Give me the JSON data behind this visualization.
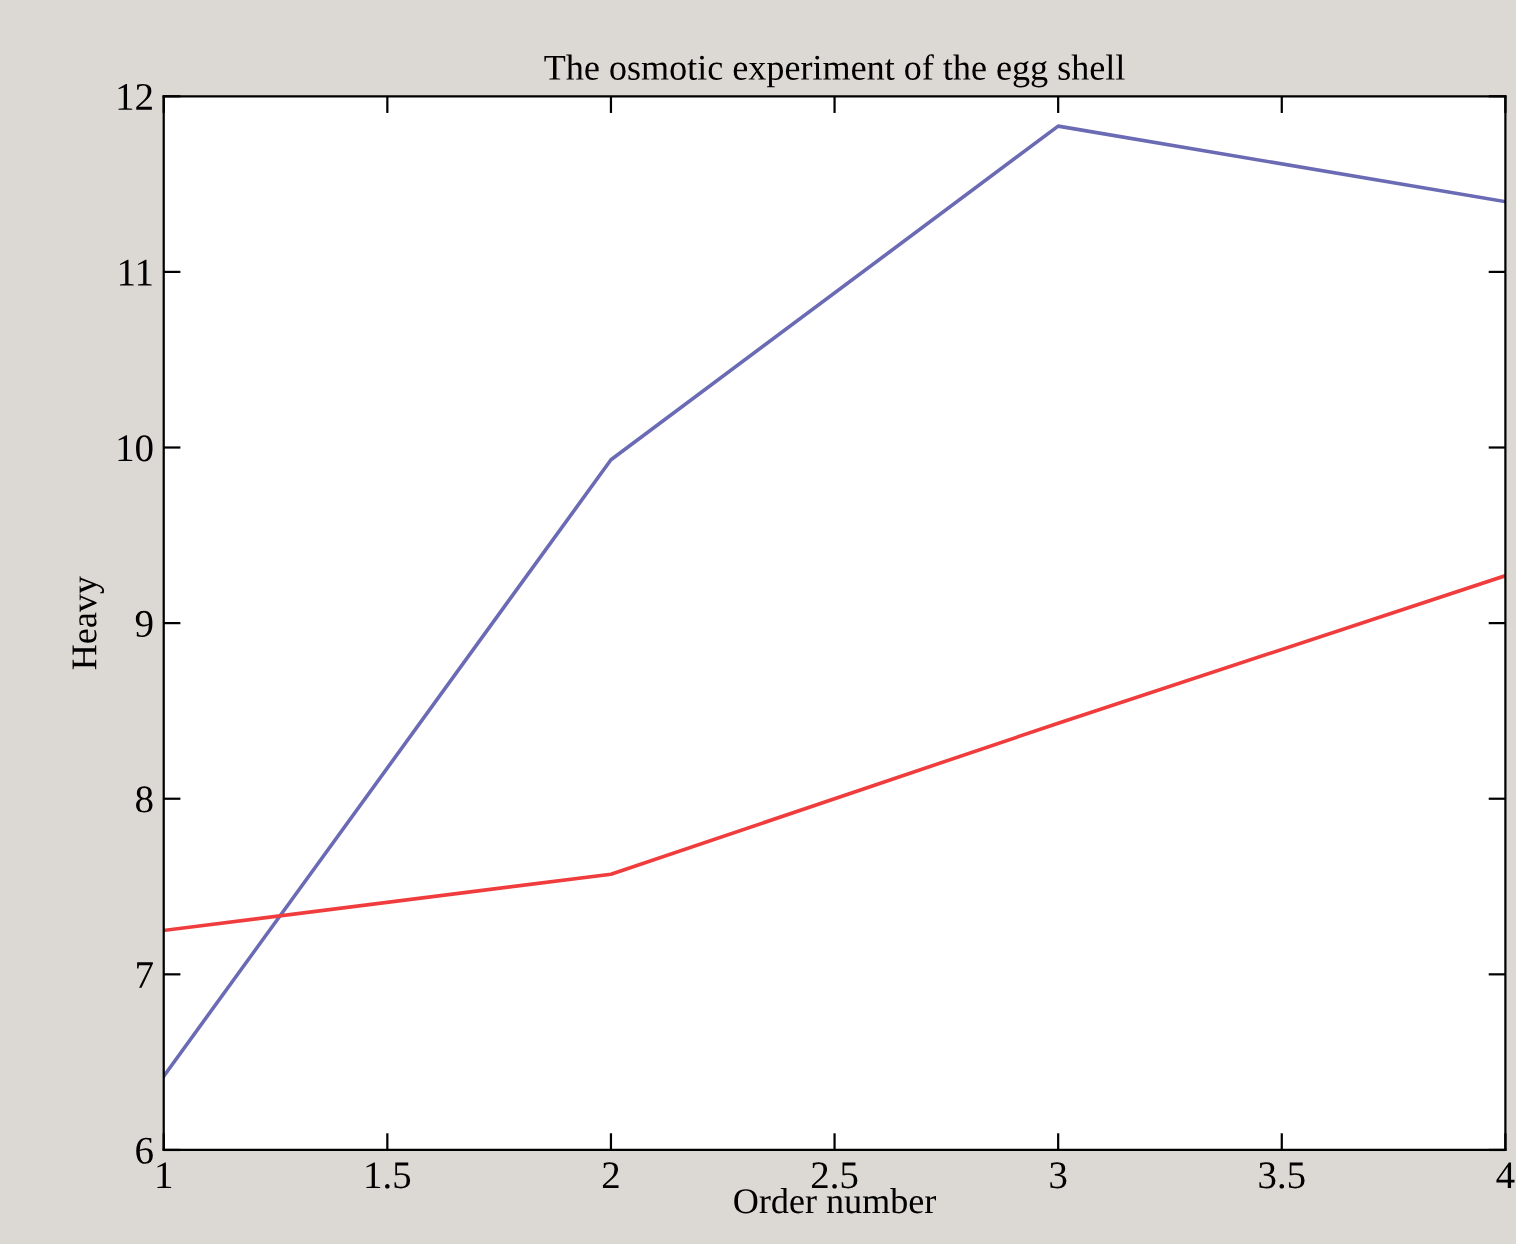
{
  "chart_data": {
    "type": "line",
    "title": "The osmotic experiment of the egg shell",
    "xlabel": "Order number",
    "ylabel": "Heavy",
    "x": [
      1,
      2,
      3,
      4
    ],
    "series": [
      {
        "color": "#6b6bb5",
        "values": [
          6.42,
          9.93,
          11.83,
          11.4
        ]
      },
      {
        "color": "#f03c3c",
        "values": [
          7.25,
          7.57,
          8.43,
          9.27
        ]
      }
    ],
    "xlim": [
      1,
      4
    ],
    "xticks": [
      1,
      1.5,
      2,
      2.5,
      3,
      3.5,
      4
    ],
    "ylim": [
      6,
      12
    ],
    "yticks": [
      6,
      7,
      8,
      9,
      10,
      11,
      12
    ],
    "grid": false,
    "legend": false
  }
}
